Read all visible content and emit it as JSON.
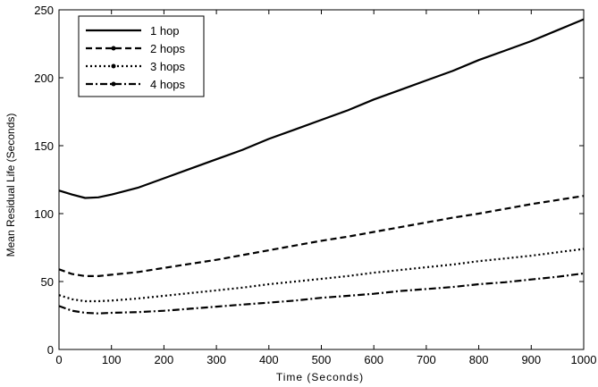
{
  "chart_data": {
    "type": "line",
    "title": "",
    "xlabel": "Time (Seconds)",
    "ylabel": "Mean Residual Life (Seconds)",
    "xlim": [
      0,
      1000
    ],
    "ylim": [
      0,
      250
    ],
    "xticks": [
      0,
      100,
      200,
      300,
      400,
      500,
      600,
      700,
      800,
      900,
      1000
    ],
    "yticks": [
      0,
      50,
      100,
      150,
      200,
      250
    ],
    "grid": false,
    "legend_position": "top-left",
    "x": [
      0,
      25,
      50,
      75,
      100,
      150,
      200,
      250,
      300,
      350,
      400,
      450,
      500,
      550,
      600,
      650,
      700,
      750,
      800,
      850,
      900,
      950,
      1000
    ],
    "series": [
      {
        "name": "1 hop",
        "dash": "solid",
        "color": "#000000",
        "values": [
          117,
          114,
          111.5,
          112,
          114,
          119,
          126,
          133,
          140,
          147,
          155,
          162,
          169,
          176,
          184,
          191,
          198,
          205,
          213,
          220,
          227,
          235,
          243
        ]
      },
      {
        "name": "2 hops",
        "dash": "dashed",
        "color": "#000000",
        "values": [
          59,
          55.5,
          54,
          54,
          55,
          57,
          60,
          63,
          66,
          69.5,
          73,
          76.5,
          80,
          83,
          86.5,
          90,
          93.5,
          97,
          100,
          103.5,
          107,
          110,
          113
        ]
      },
      {
        "name": "3 hops",
        "dash": "dotted",
        "color": "#000000",
        "values": [
          40,
          37,
          35.5,
          35.5,
          36,
          37.5,
          39.5,
          41.5,
          43.5,
          45.5,
          48,
          50,
          52,
          54,
          56.5,
          58.5,
          60.5,
          62.5,
          65,
          67,
          69,
          71.5,
          74
        ]
      },
      {
        "name": "4 hops",
        "dash": "dashdot",
        "color": "#000000",
        "values": [
          32,
          28.5,
          27,
          26.5,
          27,
          27.5,
          28.5,
          30,
          31.5,
          33,
          34.5,
          36,
          38,
          39.5,
          41,
          43,
          44.5,
          46,
          48,
          49.5,
          51.5,
          53.5,
          56
        ]
      }
    ]
  }
}
